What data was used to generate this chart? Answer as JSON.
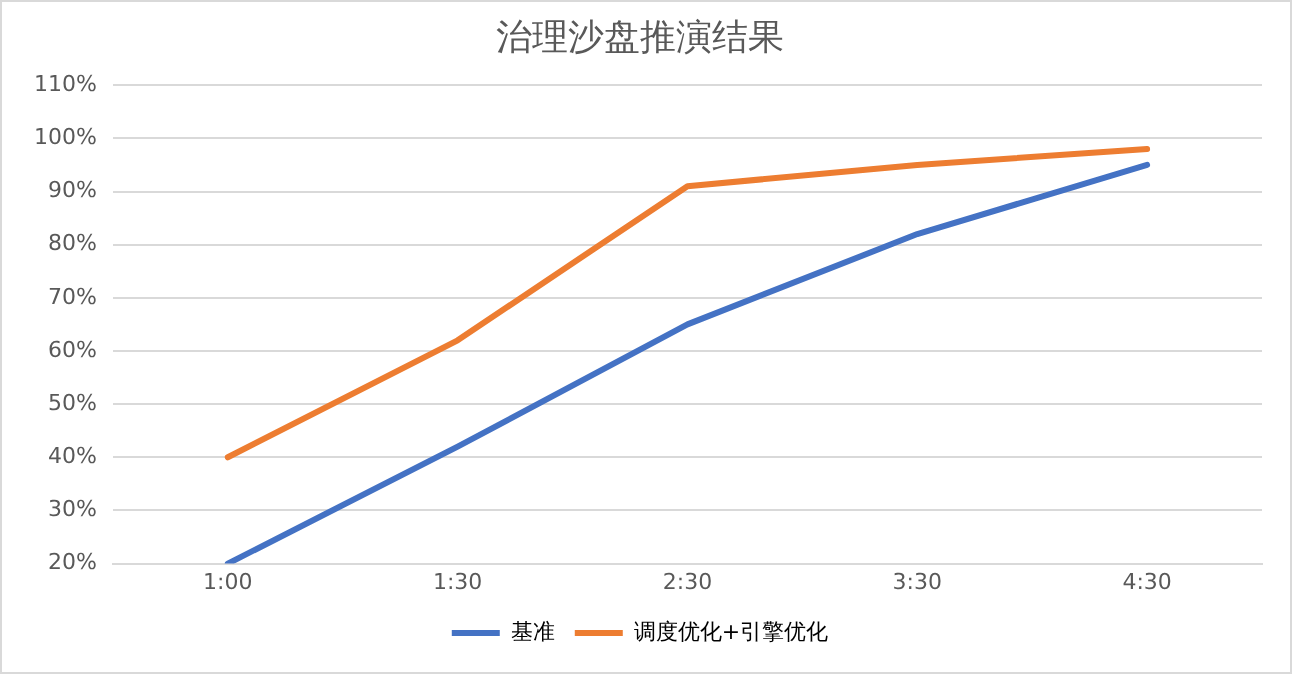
{
  "chart_data": {
    "type": "line",
    "title": "治理沙盘推演结果",
    "categories": [
      "1:00",
      "1:30",
      "2:30",
      "3:30",
      "4:30"
    ],
    "series": [
      {
        "name": "基准",
        "color": "#4472c4",
        "values": [
          20,
          42,
          65,
          82,
          95
        ]
      },
      {
        "name": "调度优化+引擎优化",
        "color": "#ed7d31",
        "values": [
          40,
          62,
          91,
          95,
          98
        ]
      }
    ],
    "ylim": [
      20,
      110
    ],
    "yticks": [
      {
        "value": 20,
        "label": "20%"
      },
      {
        "value": 30,
        "label": "30%"
      },
      {
        "value": 40,
        "label": "40%"
      },
      {
        "value": 50,
        "label": "50%"
      },
      {
        "value": 60,
        "label": "60%"
      },
      {
        "value": 70,
        "label": "70%"
      },
      {
        "value": 80,
        "label": "80%"
      },
      {
        "value": 90,
        "label": "90%"
      },
      {
        "value": 100,
        "label": "100%"
      },
      {
        "value": 110,
        "label": "110%"
      }
    ],
    "grid": "y",
    "legend": "bottom",
    "marker": "none",
    "line_style": "solid"
  }
}
